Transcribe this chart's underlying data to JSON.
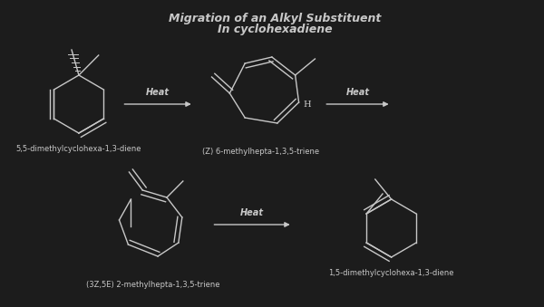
{
  "title_line1": "Migration of an Alkyl Substituent",
  "title_line2": "In cyclohexadiene",
  "bg_color": "#1c1c1c",
  "fg_color": "#c8c8c8",
  "label1": "5,5-dimethylcyclohexa-1,3-diene",
  "label2": "(Z) 6-methylhepta-1,3,5-triene",
  "label3": "(3Z,5E) 2-methylhepta-1,3,5-triene",
  "label4": "1,5-dimethylcyclohexa-1,3-diene",
  "heat_label": "Heat",
  "font_size_title": 9,
  "font_size_label": 6,
  "font_size_heat": 7
}
